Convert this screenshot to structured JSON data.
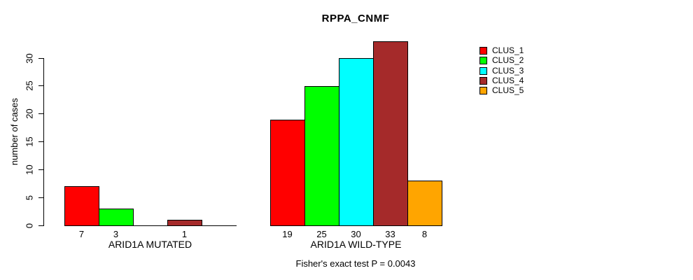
{
  "chart_data": {
    "type": "bar",
    "title": "RPPA_CNMF",
    "ylabel": "number of cases",
    "ylim": [
      0,
      33
    ],
    "yticks": [
      0,
      5,
      10,
      15,
      20,
      25,
      30
    ],
    "grid": false,
    "legend_position": "top-right",
    "series": [
      {
        "name": "CLUS_1",
        "color": "#FF0000"
      },
      {
        "name": "CLUS_2",
        "color": "#00FF00"
      },
      {
        "name": "CLUS_3",
        "color": "#00FFFF"
      },
      {
        "name": "CLUS_4",
        "color": "#A52A2A"
      },
      {
        "name": "CLUS_5",
        "color": "#FFA500"
      }
    ],
    "groups": [
      {
        "label": "ARID1A MUTATED",
        "values": [
          7,
          3,
          0,
          1,
          0
        ],
        "bar_labels": [
          "7",
          "3",
          "",
          "1",
          ""
        ]
      },
      {
        "label": "ARID1A WILD-TYPE",
        "values": [
          19,
          25,
          30,
          33,
          8
        ],
        "bar_labels": [
          "19",
          "25",
          "30",
          "33",
          "8"
        ]
      }
    ],
    "annotation": "Fisher's exact test P = 0.0043"
  }
}
